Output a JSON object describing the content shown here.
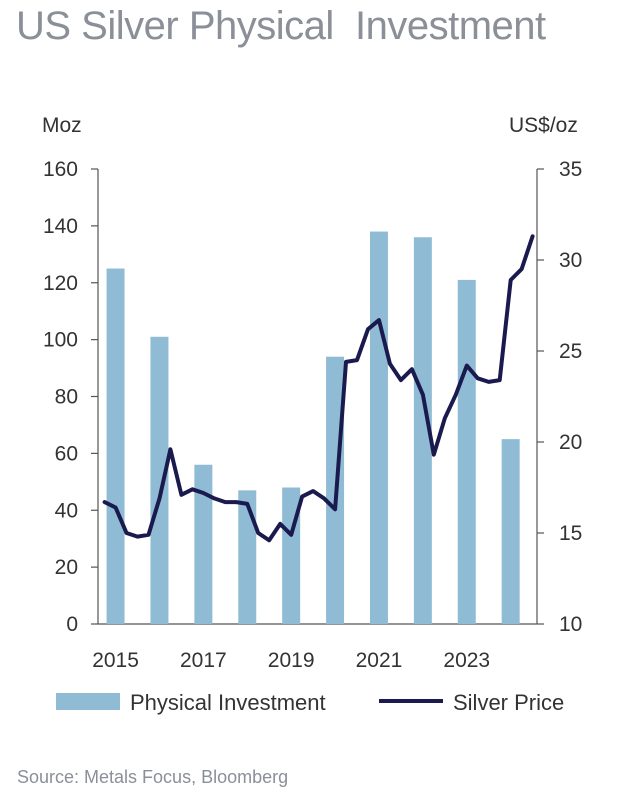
{
  "title": "US Silver Physical  Investment",
  "source": "Source: Metals Focus, Bloomberg",
  "colors": {
    "bar": "#8fbcd4",
    "line": "#1a1a4e",
    "axis": "#555555",
    "text": "#333333"
  },
  "chart_data": {
    "type": "bar+line",
    "left_axis": {
      "label": "Moz",
      "range": [
        0,
        160
      ],
      "ticks": [
        0,
        20,
        40,
        60,
        80,
        100,
        120,
        140,
        160
      ]
    },
    "right_axis": {
      "label": "US$/oz",
      "range": [
        10,
        35
      ],
      "ticks": [
        10,
        15,
        20,
        25,
        30,
        35
      ]
    },
    "x_axis": {
      "range": [
        2014.6,
        2024.6
      ],
      "tick_labels": [
        "2015",
        "2017",
        "2019",
        "2021",
        "2023"
      ],
      "tick_values": [
        2015,
        2017,
        2019,
        2021,
        2023
      ]
    },
    "bars": {
      "name": "Physical Investment",
      "x": [
        2015,
        2016,
        2017,
        2018,
        2019,
        2020,
        2021,
        2022,
        2023,
        2024
      ],
      "values": [
        125,
        101,
        56,
        47,
        48,
        94,
        138,
        136,
        121,
        65
      ]
    },
    "line": {
      "name": "Silver Price",
      "points": [
        [
          2014.75,
          16.7
        ],
        [
          2015.0,
          16.4
        ],
        [
          2015.25,
          15.0
        ],
        [
          2015.5,
          14.8
        ],
        [
          2015.75,
          14.9
        ],
        [
          2016.0,
          16.9
        ],
        [
          2016.25,
          19.6
        ],
        [
          2016.5,
          17.1
        ],
        [
          2016.75,
          17.4
        ],
        [
          2017.0,
          17.2
        ],
        [
          2017.25,
          16.9
        ],
        [
          2017.5,
          16.7
        ],
        [
          2017.75,
          16.7
        ],
        [
          2018.0,
          16.6
        ],
        [
          2018.25,
          15.0
        ],
        [
          2018.5,
          14.6
        ],
        [
          2018.75,
          15.5
        ],
        [
          2019.0,
          14.9
        ],
        [
          2019.25,
          17.0
        ],
        [
          2019.5,
          17.3
        ],
        [
          2019.75,
          16.9
        ],
        [
          2020.0,
          16.3
        ],
        [
          2020.25,
          24.4
        ],
        [
          2020.5,
          24.5
        ],
        [
          2020.75,
          26.2
        ],
        [
          2021.0,
          26.7
        ],
        [
          2021.25,
          24.3
        ],
        [
          2021.5,
          23.4
        ],
        [
          2021.75,
          24.0
        ],
        [
          2022.0,
          22.6
        ],
        [
          2022.25,
          19.3
        ],
        [
          2022.5,
          21.3
        ],
        [
          2022.75,
          22.6
        ],
        [
          2023.0,
          24.2
        ],
        [
          2023.25,
          23.5
        ],
        [
          2023.5,
          23.3
        ],
        [
          2023.75,
          23.4
        ],
        [
          2024.0,
          28.9
        ],
        [
          2024.25,
          29.5
        ],
        [
          2024.5,
          31.3
        ]
      ]
    },
    "legend": {
      "placement": "bottom",
      "entries": [
        "Physical Investment",
        "Silver Price"
      ]
    }
  }
}
